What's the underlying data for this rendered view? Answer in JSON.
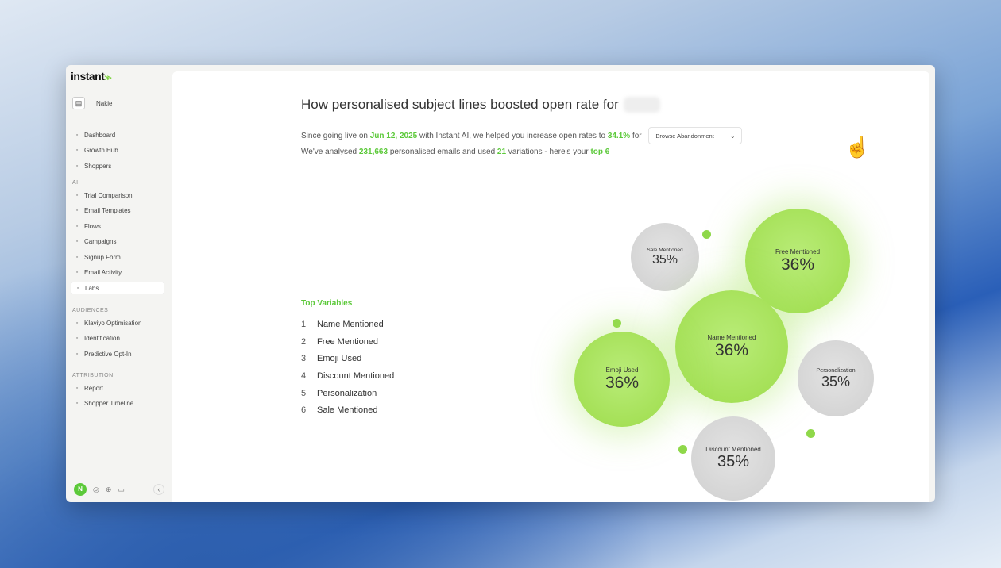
{
  "sidebar": {
    "logo": "instant",
    "logo_mark": "≫",
    "store": "Nakie",
    "main_items": [
      {
        "label": "Dashboard",
        "icon": "chart-icon"
      },
      {
        "label": "Growth Hub",
        "icon": "monitor-icon"
      },
      {
        "label": "Shoppers",
        "icon": "users-icon"
      }
    ],
    "ai_label": "AI",
    "ai_items": [
      {
        "label": "Trial Comparison",
        "icon": "scale-icon"
      },
      {
        "label": "Email Templates",
        "icon": "template-icon"
      },
      {
        "label": "Flows",
        "icon": "flow-icon"
      },
      {
        "label": "Campaigns",
        "icon": "mail-icon"
      },
      {
        "label": "Signup Form",
        "icon": "edit-icon"
      },
      {
        "label": "Email Activity",
        "icon": "activity-icon"
      },
      {
        "label": "Labs",
        "icon": "flask-icon",
        "active": true
      }
    ],
    "audiences_label": "AUDIENCES",
    "audience_items": [
      {
        "label": "Klaviyo Optimisation",
        "icon": "wave-icon"
      },
      {
        "label": "Identification",
        "icon": "fingerprint-icon"
      },
      {
        "label": "Predictive Opt-In",
        "icon": "sparkle-icon"
      }
    ],
    "attribution_label": "ATTRIBUTION",
    "attribution_items": [
      {
        "label": "Report",
        "icon": "report-icon"
      },
      {
        "label": "Shopper Timeline",
        "icon": "clock-icon"
      }
    ]
  },
  "main": {
    "title": "How personalised subject lines boosted open rate for",
    "line1": {
      "a": "Since going live on ",
      "date": "Jun 12, 2025",
      "b": " with Instant AI, we helped you increase open rates to ",
      "rate": "34.1%",
      "c": " for "
    },
    "dropdown": "Browse Abandonment",
    "line2": {
      "a": "We've analysed ",
      "emails": "231,663",
      "b": " personalised emails and used ",
      "variations": "21",
      "c": " variations - here's your ",
      "top": "top 6"
    },
    "top_variables_label": "Top Variables",
    "top_variables": [
      "Name Mentioned",
      "Free Mentioned",
      "Emoji Used",
      "Discount Mentioned",
      "Personalization",
      "Sale Mentioned"
    ],
    "bubbles": [
      {
        "label": "Sale Mentioned",
        "value": "35%"
      },
      {
        "label": "Free Mentioned",
        "value": "36%"
      },
      {
        "label": "Name Mentioned",
        "value": "36%"
      },
      {
        "label": "Emoji Used",
        "value": "36%"
      },
      {
        "label": "Personalization",
        "value": "35%"
      },
      {
        "label": "Discount Mentioned",
        "value": "35%"
      }
    ]
  },
  "colors": {
    "accent": "#5cc93a",
    "bubble_green": "#a6e35a",
    "bubble_gray": "#d9d9d9"
  }
}
